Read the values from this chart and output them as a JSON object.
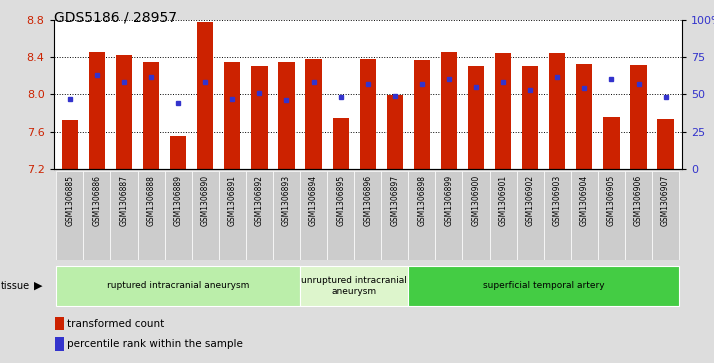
{
  "title": "GDS5186 / 28957",
  "samples": [
    "GSM1306885",
    "GSM1306886",
    "GSM1306887",
    "GSM1306888",
    "GSM1306889",
    "GSM1306890",
    "GSM1306891",
    "GSM1306892",
    "GSM1306893",
    "GSM1306894",
    "GSM1306895",
    "GSM1306896",
    "GSM1306897",
    "GSM1306898",
    "GSM1306899",
    "GSM1306900",
    "GSM1306901",
    "GSM1306902",
    "GSM1306903",
    "GSM1306904",
    "GSM1306905",
    "GSM1306906",
    "GSM1306907"
  ],
  "red_values": [
    7.72,
    8.46,
    8.42,
    8.35,
    7.55,
    8.78,
    8.35,
    8.31,
    8.35,
    8.38,
    7.75,
    8.38,
    7.99,
    8.37,
    8.46,
    8.31,
    8.44,
    8.31,
    8.45,
    8.33,
    7.76,
    8.32,
    7.73
  ],
  "blue_values": [
    47,
    63,
    58,
    62,
    44,
    58,
    47,
    51,
    46,
    58,
    48,
    57,
    49,
    57,
    60,
    55,
    58,
    53,
    62,
    54,
    60,
    57,
    48
  ],
  "ylim_left": [
    7.2,
    8.8
  ],
  "ylim_right": [
    0,
    100
  ],
  "yticks_left": [
    7.2,
    7.6,
    8.0,
    8.4,
    8.8
  ],
  "yticks_right": [
    0,
    25,
    50,
    75,
    100
  ],
  "ytick_labels_right": [
    "0",
    "25",
    "50",
    "75",
    "100%"
  ],
  "bar_color": "#cc2200",
  "dot_color": "#3333cc",
  "groups": [
    {
      "label": "ruptured intracranial aneurysm",
      "start": 0,
      "end": 8,
      "color": "#bbeeaa"
    },
    {
      "label": "unruptured intracranial\naneurysm",
      "start": 9,
      "end": 12,
      "color": "#ddf5cc"
    },
    {
      "label": "superficial temporal artery",
      "start": 13,
      "end": 22,
      "color": "#44cc44"
    }
  ],
  "tissue_label": "tissue",
  "legend_labels": [
    "transformed count",
    "percentile rank within the sample"
  ],
  "bg_color": "#dddddd",
  "plot_bg": "#ffffff",
  "xtick_bg": "#cccccc",
  "title_fontsize": 10,
  "axis_label_color_left": "#cc2200",
  "axis_label_color_right": "#3333cc"
}
